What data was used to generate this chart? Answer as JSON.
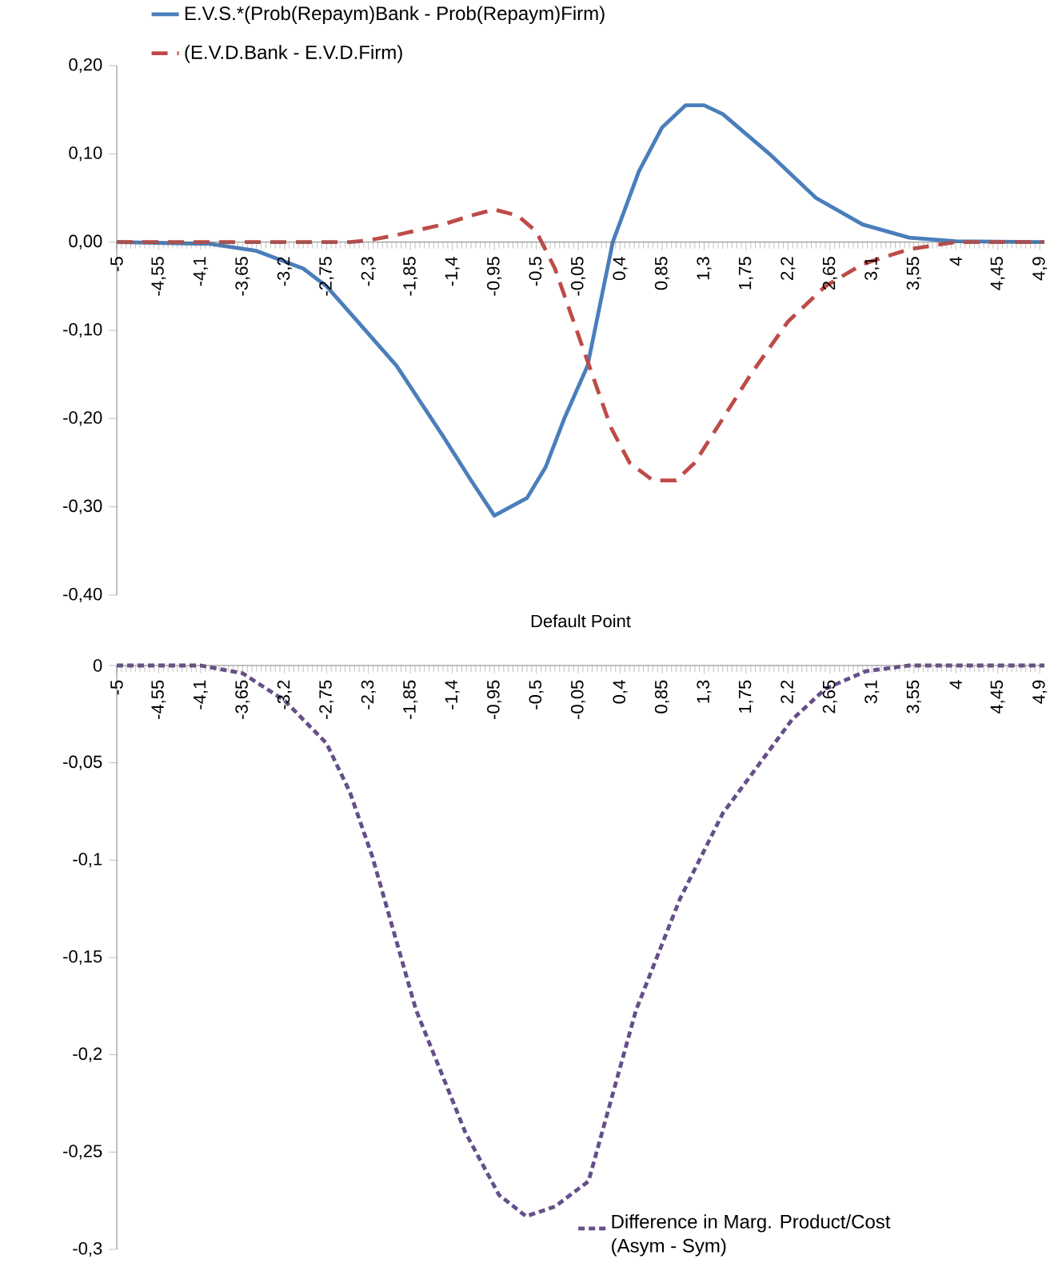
{
  "chart_data": [
    {
      "type": "line",
      "legend": "top",
      "xlim": [
        -5,
        4.95
      ],
      "ylim": [
        -0.4,
        0.2
      ],
      "xticks": [
        {
          "value": -5,
          "label": "-5"
        },
        {
          "value": -4.55,
          "label": "-4,55"
        },
        {
          "value": -4.1,
          "label": "-4,1"
        },
        {
          "value": -3.65,
          "label": "-3,65"
        },
        {
          "value": -3.2,
          "label": "-3,2"
        },
        {
          "value": -2.75,
          "label": "-2,75"
        },
        {
          "value": -2.3,
          "label": "-2,3"
        },
        {
          "value": -1.85,
          "label": "-1,85"
        },
        {
          "value": -1.4,
          "label": "-1,4"
        },
        {
          "value": -0.95,
          "label": "-0,95"
        },
        {
          "value": -0.5,
          "label": "-0,5"
        },
        {
          "value": -0.05,
          "label": "-0,05"
        },
        {
          "value": 0.4,
          "label": "0,4"
        },
        {
          "value": 0.85,
          "label": "0,85"
        },
        {
          "value": 1.3,
          "label": "1,3"
        },
        {
          "value": 1.75,
          "label": "1,75"
        },
        {
          "value": 2.2,
          "label": "2,2"
        },
        {
          "value": 2.65,
          "label": "2,65"
        },
        {
          "value": 3.1,
          "label": "3,1"
        },
        {
          "value": 3.55,
          "label": "3,55"
        },
        {
          "value": 4,
          "label": "4"
        },
        {
          "value": 4.45,
          "label": "4,45"
        },
        {
          "value": 4.9,
          "label": "4,9"
        }
      ],
      "yticks": [
        {
          "value": 0.2,
          "label": "0,20"
        },
        {
          "value": 0.1,
          "label": "0,10"
        },
        {
          "value": 0,
          "label": "0,00"
        },
        {
          "value": -0.1,
          "label": "-0,10"
        },
        {
          "value": -0.2,
          "label": "-0,20"
        },
        {
          "value": -0.3,
          "label": "-0,30"
        },
        {
          "value": -0.4,
          "label": "-0,40"
        }
      ],
      "series": [
        {
          "name": "E.V.S.*(Prob(Repaym)Bank - Prob(Repaym)Firm)",
          "color": "#4a7ebb",
          "line_style": "solid",
          "x": [
            -5,
            -4,
            -3.5,
            -3,
            -2.75,
            -2.5,
            -2,
            -1.5,
            -1.2,
            -0.95,
            -0.6,
            -0.4,
            -0.2,
            0.05,
            0.32,
            0.6,
            0.85,
            1.1,
            1.3,
            1.5,
            2,
            2.5,
            3,
            3.5,
            4,
            4.95
          ],
          "values": [
            0,
            -0.002,
            -0.01,
            -0.03,
            -0.05,
            -0.08,
            -0.14,
            -0.22,
            -0.27,
            -0.31,
            -0.29,
            -0.255,
            -0.2,
            -0.14,
            0,
            0.08,
            0.13,
            0.155,
            0.155,
            0.145,
            0.1,
            0.05,
            0.02,
            0.005,
            0.001,
            0
          ]
        },
        {
          "name": "(E.V.D.Bank - E.V.D.Firm)",
          "color": "#be4b48",
          "line_style": "dashed",
          "x": [
            -5,
            -2.5,
            -2.3,
            -2,
            -1.5,
            -1.2,
            -0.95,
            -0.7,
            -0.5,
            -0.3,
            -0.1,
            0.1,
            0.3,
            0.5,
            0.75,
            1,
            1.2,
            1.5,
            1.8,
            2.2,
            2.6,
            3,
            3.5,
            4,
            4.95
          ],
          "values": [
            0,
            0,
            0.002,
            0.008,
            0.02,
            0.03,
            0.037,
            0.03,
            0.012,
            -0.03,
            -0.09,
            -0.15,
            -0.21,
            -0.25,
            -0.27,
            -0.27,
            -0.25,
            -0.2,
            -0.15,
            -0.09,
            -0.05,
            -0.025,
            -0.008,
            0,
            0
          ]
        }
      ]
    },
    {
      "type": "line",
      "title": "Default Point",
      "legend": "bottom right",
      "xlim": [
        -5,
        4.95
      ],
      "ylim": [
        -0.3,
        0
      ],
      "xticks": [
        {
          "value": -5,
          "label": "-5"
        },
        {
          "value": -4.55,
          "label": "-4,55"
        },
        {
          "value": -4.1,
          "label": "-4,1"
        },
        {
          "value": -3.65,
          "label": "-3,65"
        },
        {
          "value": -3.2,
          "label": "-3,2"
        },
        {
          "value": -2.75,
          "label": "-2,75"
        },
        {
          "value": -2.3,
          "label": "-2,3"
        },
        {
          "value": -1.85,
          "label": "-1,85"
        },
        {
          "value": -1.4,
          "label": "-1,4"
        },
        {
          "value": -0.95,
          "label": "-0,95"
        },
        {
          "value": -0.5,
          "label": "-0,5"
        },
        {
          "value": -0.05,
          "label": "-0,05"
        },
        {
          "value": 0.4,
          "label": "0,4"
        },
        {
          "value": 0.85,
          "label": "0,85"
        },
        {
          "value": 1.3,
          "label": "1,3"
        },
        {
          "value": 1.75,
          "label": "1,75"
        },
        {
          "value": 2.2,
          "label": "2,2"
        },
        {
          "value": 2.65,
          "label": "2,65"
        },
        {
          "value": 3.1,
          "label": "3,1"
        },
        {
          "value": 3.55,
          "label": "3,55"
        },
        {
          "value": 4,
          "label": "4"
        },
        {
          "value": 4.45,
          "label": "4,45"
        },
        {
          "value": 4.9,
          "label": "4,9"
        }
      ],
      "yticks": [
        {
          "value": 0,
          "label": "0"
        },
        {
          "value": -0.05,
          "label": "-0,05"
        },
        {
          "value": -0.1,
          "label": "-0,1"
        },
        {
          "value": -0.15,
          "label": "-0,15"
        },
        {
          "value": -0.2,
          "label": "-0,2"
        },
        {
          "value": -0.25,
          "label": "-0,25"
        },
        {
          "value": -0.3,
          "label": "-0,3"
        }
      ],
      "series": [
        {
          "name": "Difference in Marg. Product/Cost (Asym - Sym)",
          "color": "#654f8a",
          "line_style": "dotted",
          "x": [
            -5,
            -4.1,
            -3.65,
            -3.2,
            -2.75,
            -2.5,
            -2.26,
            -1.79,
            -1.26,
            -0.9,
            -0.61,
            -0.3,
            0.06,
            0.57,
            1.04,
            1.5,
            2.24,
            2.6,
            3.03,
            3.5,
            4.95
          ],
          "values": [
            0,
            0,
            -0.004,
            -0.018,
            -0.04,
            -0.065,
            -0.098,
            -0.177,
            -0.24,
            -0.272,
            -0.283,
            -0.278,
            -0.265,
            -0.177,
            -0.12,
            -0.076,
            -0.028,
            -0.012,
            -0.003,
            0,
            0
          ]
        }
      ]
    }
  ]
}
